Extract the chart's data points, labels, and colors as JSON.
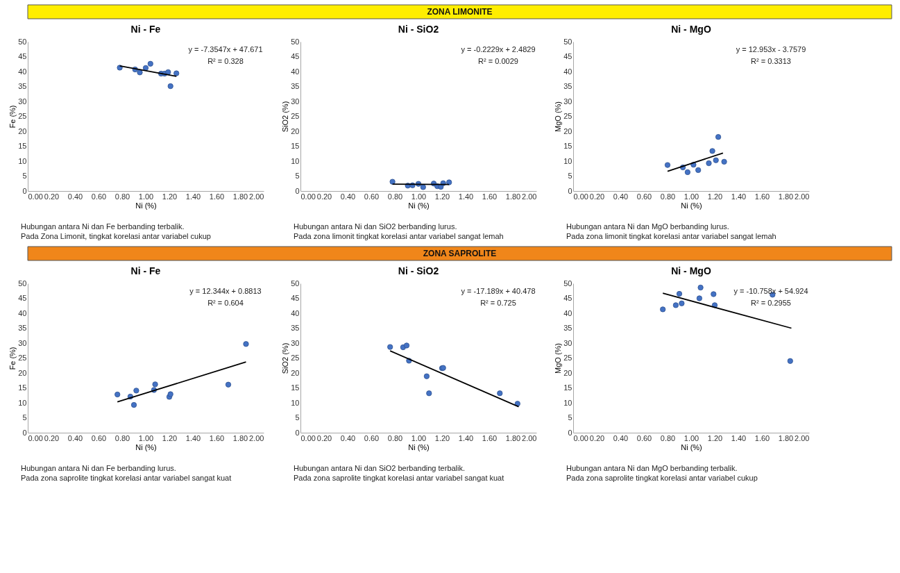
{
  "chart_data": [
    {
      "type": "other",
      "title": "ZONA LIMONITE",
      "colors": [
        "#ffee00"
      ]
    },
    {
      "type": "scatter",
      "title": "Ni - Fe",
      "xlabel": "Ni (%)",
      "ylabel": "Fe (%)",
      "xlim": [
        0,
        2
      ],
      "xticks": [
        {
          "value": 0,
          "label": "0.00"
        },
        {
          "value": 0.2,
          "label": "0.20"
        },
        {
          "value": 0.4,
          "label": "0.40"
        },
        {
          "value": 0.6,
          "label": "0.60"
        },
        {
          "value": 0.8,
          "label": "0.80"
        },
        {
          "value": 1,
          "label": "1.00"
        },
        {
          "value": 1.2,
          "label": "1.20"
        },
        {
          "value": 1.4,
          "label": "1.40"
        },
        {
          "value": 1.6,
          "label": "1.60"
        },
        {
          "value": 1.8,
          "label": "1.80"
        },
        {
          "value": 2,
          "label": "2.00"
        }
      ],
      "ylim": [
        0,
        50
      ],
      "yticks": [
        0,
        5,
        10,
        15,
        20,
        25,
        30,
        35,
        40,
        45,
        50
      ],
      "series": [
        {
          "type": "scatter",
          "marker": "circle",
          "color": "#4472c4",
          "x": [
            0.78,
            0.91,
            0.95,
            1.0,
            1.04,
            1.13,
            1.16,
            1.19,
            1.21,
            1.26
          ],
          "values": [
            41.3,
            40.7,
            39.7,
            41.2,
            42.6,
            39.3,
            39.3,
            39.8,
            35.1,
            39.4
          ]
        },
        {
          "type": "line",
          "marker": "none",
          "color": "#000000",
          "x": [
            0.78,
            1.26
          ],
          "values": [
            41.9,
            38.4
          ]
        }
      ],
      "annotations": [
        "y = -7.3547x + 47.671",
        "R² = 0.328",
        "Hubungan antara Ni dan Fe berbanding terbalik.",
        "Pada Zona Limonit, tingkat korelasi antar variabel cukup"
      ]
    },
    {
      "type": "scatter",
      "title": "Ni - SiO2",
      "xlabel": "Ni (%)",
      "ylabel": "SiO2 (%)",
      "xlim": [
        0,
        2
      ],
      "xticks": [
        {
          "value": 0,
          "label": "0.00"
        },
        {
          "value": 0.2,
          "label": "0.20"
        },
        {
          "value": 0.4,
          "label": "0.40"
        },
        {
          "value": 0.6,
          "label": "0.60"
        },
        {
          "value": 0.8,
          "label": "0.80"
        },
        {
          "value": 1,
          "label": "1.00"
        },
        {
          "value": 1.2,
          "label": "1.20"
        },
        {
          "value": 1.4,
          "label": "1.40"
        },
        {
          "value": 1.6,
          "label": "1.60"
        },
        {
          "value": 1.8,
          "label": "1.80"
        },
        {
          "value": 2,
          "label": "2.00"
        }
      ],
      "ylim": [
        0,
        50
      ],
      "yticks": [
        0,
        5,
        10,
        15,
        20,
        25,
        30,
        35,
        40,
        45,
        50
      ],
      "series": [
        {
          "type": "scatter",
          "marker": "circle",
          "color": "#4472c4",
          "x": [
            0.78,
            0.91,
            0.95,
            1.0,
            1.04,
            1.13,
            1.16,
            1.19,
            1.21,
            1.26
          ],
          "values": [
            3.1,
            1.8,
            1.9,
            2.4,
            1.3,
            2.5,
            1.6,
            1.4,
            2.6,
            2.9
          ]
        },
        {
          "type": "line",
          "marker": "none",
          "color": "#000000",
          "x": [
            0.78,
            1.26
          ],
          "values": [
            2.3,
            2.2
          ]
        }
      ],
      "annotations": [
        "y = -0.2229x + 2.4829",
        "R² = 0.0029",
        "Hubungan antara Ni dan SiO2 berbanding lurus.",
        "Pada zona limonit tingkat korelasi antar variabel sangat lemah"
      ]
    },
    {
      "type": "scatter",
      "title": "Ni - MgO",
      "xlabel": "Ni (%)",
      "ylabel": "MgO (%)",
      "xlim": [
        0,
        2
      ],
      "xticks": [
        {
          "value": 0,
          "label": "0.00"
        },
        {
          "value": 0.2,
          "label": "0.20"
        },
        {
          "value": 0.4,
          "label": "0.40"
        },
        {
          "value": 0.6,
          "label": "0.60"
        },
        {
          "value": 0.8,
          "label": "0.80"
        },
        {
          "value": 1,
          "label": "1.00"
        },
        {
          "value": 1.2,
          "label": "1.20"
        },
        {
          "value": 1.4,
          "label": "1.40"
        },
        {
          "value": 1.6,
          "label": "1.60"
        },
        {
          "value": 1.8,
          "label": "1.80"
        },
        {
          "value": 2,
          "label": "2.00"
        }
      ],
      "ylim": [
        0,
        50
      ],
      "yticks": [
        0,
        5,
        10,
        15,
        20,
        25,
        30,
        35,
        40,
        45,
        50
      ],
      "series": [
        {
          "type": "scatter",
          "marker": "circle",
          "color": "#4472c4",
          "x": [
            0.8,
            0.93,
            0.97,
            1.02,
            1.06,
            1.15,
            1.18,
            1.21,
            1.23,
            1.28
          ],
          "values": [
            8.7,
            7.9,
            6.3,
            8.8,
            7.0,
            9.3,
            13.4,
            10.3,
            18.1,
            9.8
          ]
        },
        {
          "type": "line",
          "marker": "none",
          "color": "#000000",
          "x": [
            0.8,
            1.27
          ],
          "values": [
            6.6,
            12.7
          ]
        }
      ],
      "annotations": [
        "y = 12.953x - 3.7579",
        "R² = 0.3313",
        "Hubungan antara Ni dan MgO berbanding lurus.",
        "Pada zona limonit tingkat korelasi antar variabel sangat lemah"
      ]
    },
    {
      "type": "other",
      "title": "ZONA SAPROLITE",
      "colors": [
        "#f0861a"
      ]
    },
    {
      "type": "scatter",
      "title": "Ni - Fe",
      "xlabel": "Ni (%)",
      "ylabel": "Fe (%)",
      "xlim": [
        0,
        2
      ],
      "xticks": [
        {
          "value": 0,
          "label": "0.00"
        },
        {
          "value": 0.2,
          "label": "0.20"
        },
        {
          "value": 0.4,
          "label": "0.40"
        },
        {
          "value": 0.6,
          "label": "0.60"
        },
        {
          "value": 0.8,
          "label": "0.80"
        },
        {
          "value": 1,
          "label": "1.00"
        },
        {
          "value": 1.2,
          "label": "1.20"
        },
        {
          "value": 1.4,
          "label": "1.40"
        },
        {
          "value": 1.6,
          "label": "1.60"
        },
        {
          "value": 1.8,
          "label": "1.80"
        },
        {
          "value": 2,
          "label": "2.00"
        }
      ],
      "ylim": [
        0,
        50
      ],
      "yticks": [
        0,
        5,
        10,
        15,
        20,
        25,
        30,
        35,
        40,
        45,
        50
      ],
      "series": [
        {
          "type": "scatter",
          "marker": "circle",
          "color": "#4472c4",
          "x": [
            0.76,
            0.87,
            0.9,
            0.92,
            1.07,
            1.08,
            1.2,
            1.21,
            1.7,
            1.85
          ],
          "values": [
            12.8,
            12.1,
            9.3,
            14.1,
            14.3,
            16.2,
            12.0,
            12.9,
            16.1,
            29.7
          ]
        },
        {
          "type": "line",
          "marker": "none",
          "color": "#000000",
          "x": [
            0.76,
            1.85
          ],
          "values": [
            10.3,
            23.7
          ]
        }
      ],
      "annotations": [
        "y = 12.344x + 0.8813",
        "R² = 0.604",
        "Hubungan antara Ni dan Fe berbanding lurus.",
        "Pada zona saprolite tingkat korelasi antar variabel sangat kuat"
      ]
    },
    {
      "type": "scatter",
      "title": "Ni - SiO2",
      "xlabel": "Ni (%)",
      "ylabel": "SiO2 (%)",
      "xlim": [
        0,
        2
      ],
      "xticks": [
        {
          "value": 0,
          "label": "0.00"
        },
        {
          "value": 0.2,
          "label": "0.20"
        },
        {
          "value": 0.4,
          "label": "0.40"
        },
        {
          "value": 0.6,
          "label": "0.60"
        },
        {
          "value": 0.8,
          "label": "0.80"
        },
        {
          "value": 1,
          "label": "1.00"
        },
        {
          "value": 1.2,
          "label": "1.20"
        },
        {
          "value": 1.4,
          "label": "1.40"
        },
        {
          "value": 1.6,
          "label": "1.60"
        },
        {
          "value": 1.8,
          "label": "1.80"
        },
        {
          "value": 2,
          "label": "2.00"
        }
      ],
      "ylim": [
        0,
        50
      ],
      "yticks": [
        0,
        5,
        10,
        15,
        20,
        25,
        30,
        35,
        40,
        45,
        50
      ],
      "series": [
        {
          "type": "scatter",
          "marker": "circle",
          "color": "#4472c4",
          "x": [
            0.76,
            0.87,
            0.9,
            0.92,
            1.07,
            1.09,
            1.2,
            1.21,
            1.69,
            1.84
          ],
          "values": [
            28.7,
            28.6,
            29.2,
            24.1,
            18.9,
            13.2,
            21.6,
            21.7,
            13.2,
            9.7
          ]
        },
        {
          "type": "line",
          "marker": "none",
          "color": "#000000",
          "x": [
            0.76,
            1.85
          ],
          "values": [
            27.4,
            8.7
          ]
        }
      ],
      "annotations": [
        "y = -17.189x + 40.478",
        "R² = 0.725",
        "Hubungan antara Ni dan SiO2 berbanding terbalik.",
        "Pada zona saprolite tingkat korelasi antar variabel sangat kuat"
      ]
    },
    {
      "type": "scatter",
      "title": "Ni - MgO",
      "xlabel": "Ni (%)",
      "ylabel": "MgO (%)",
      "xlim": [
        0,
        2
      ],
      "xticks": [
        {
          "value": 0,
          "label": "0.00"
        },
        {
          "value": 0.2,
          "label": "0.20"
        },
        {
          "value": 0.4,
          "label": "0.40"
        },
        {
          "value": 0.6,
          "label": "0.60"
        },
        {
          "value": 0.8,
          "label": "0.80"
        },
        {
          "value": 1,
          "label": "1.00"
        },
        {
          "value": 1.2,
          "label": "1.20"
        },
        {
          "value": 1.4,
          "label": "1.40"
        },
        {
          "value": 1.6,
          "label": "1.60"
        },
        {
          "value": 1.8,
          "label": "1.80"
        },
        {
          "value": 2,
          "label": "2.00"
        }
      ],
      "ylim": [
        0,
        50
      ],
      "yticks": [
        0,
        5,
        10,
        15,
        20,
        25,
        30,
        35,
        40,
        45,
        50
      ],
      "series": [
        {
          "type": "scatter",
          "marker": "circle",
          "color": "#4472c4",
          "x": [
            0.76,
            0.87,
            0.9,
            0.92,
            1.07,
            1.08,
            1.19,
            1.2,
            1.69,
            1.84
          ],
          "values": [
            41.3,
            42.7,
            46.5,
            43.3,
            45.0,
            48.6,
            46.4,
            42.7,
            46.2,
            24.0
          ]
        },
        {
          "type": "line",
          "marker": "none",
          "color": "#000000",
          "x": [
            0.76,
            1.85
          ],
          "values": [
            46.7,
            35.0
          ]
        }
      ],
      "annotations": [
        "y = -10.758x + 54.924",
        "R² = 0.2955",
        "Hubungan antara Ni dan MgO berbanding terbalik.",
        "Pada zona saprolite tingkat korelasi antar variabel cukup"
      ]
    }
  ]
}
